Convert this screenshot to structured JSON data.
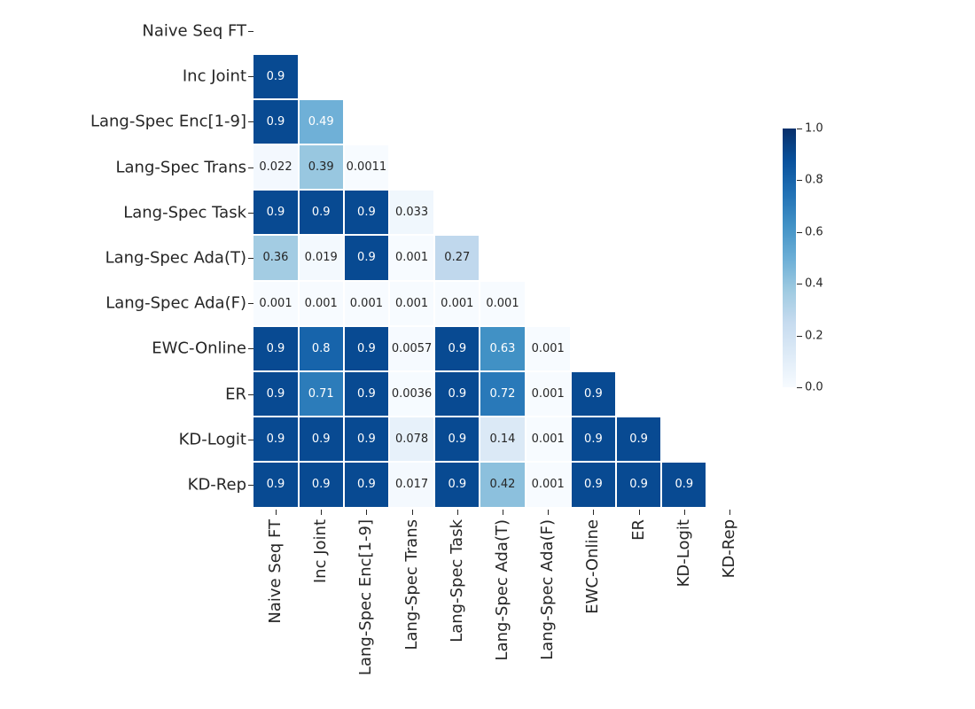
{
  "chart_data": {
    "type": "heatmap",
    "title": "",
    "xlabel": "",
    "ylabel": "",
    "categories": [
      "Naive Seq FT",
      "Inc Joint",
      "Lang-Spec Enc[1-9]",
      "Lang-Spec Trans",
      "Lang-Spec Task",
      "Lang-Spec Ada(T)",
      "Lang-Spec Ada(F)",
      "EWC-Online",
      "ER",
      "KD-Logit",
      "KD-Rep"
    ],
    "matrix_lower_triangle": [
      [],
      [
        0.9
      ],
      [
        0.9,
        0.49
      ],
      [
        0.022,
        0.39,
        0.0011
      ],
      [
        0.9,
        0.9,
        0.9,
        0.033
      ],
      [
        0.36,
        0.019,
        0.9,
        0.001,
        0.27
      ],
      [
        0.001,
        0.001,
        0.001,
        0.001,
        0.001,
        0.001
      ],
      [
        0.9,
        0.8,
        0.9,
        0.0057,
        0.9,
        0.63,
        0.001
      ],
      [
        0.9,
        0.71,
        0.9,
        0.0036,
        0.9,
        0.72,
        0.001,
        0.9
      ],
      [
        0.9,
        0.9,
        0.9,
        0.078,
        0.9,
        0.14,
        0.001,
        0.9,
        0.9
      ],
      [
        0.9,
        0.9,
        0.9,
        0.017,
        0.9,
        0.42,
        0.001,
        0.9,
        0.9,
        0.9
      ]
    ],
    "diagonal_masked": true,
    "upper_triangle_masked": true,
    "vmin": 0.0,
    "vmax": 1.0,
    "colormap": "Blues",
    "colormap_anchors": [
      "#f7fbff",
      "#deebf7",
      "#c6dbef",
      "#9ecae1",
      "#6baed6",
      "#4292c6",
      "#2171b5",
      "#08519c",
      "#08306b"
    ],
    "colorbar": {
      "position": "right",
      "tick_labels": [
        "1.0",
        "0.8",
        "0.6",
        "0.4",
        "0.2",
        "0.0"
      ]
    },
    "annotation_light_text_color": "#ffffff",
    "annotation_dark_text_color": "#262626",
    "cell_gap_color": "#ffffff",
    "background_color": "#ffffff",
    "grid": false,
    "legend_position": "right-colorbar"
  }
}
